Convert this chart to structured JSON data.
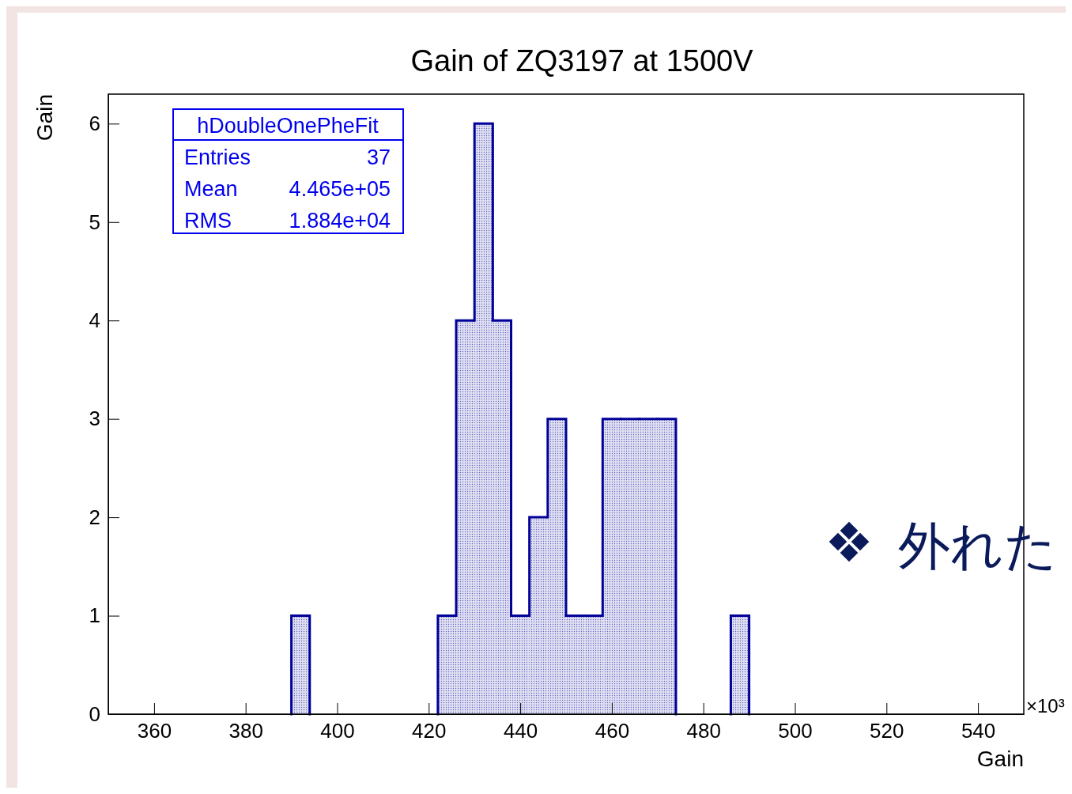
{
  "chart_data": {
    "type": "histogram",
    "title": "Gain of ZQ3197 at 1500V",
    "xlabel": "Gain",
    "ylabel": "Gain",
    "bins": [
      350,
      354,
      358,
      362,
      366,
      370,
      374,
      378,
      382,
      386,
      390,
      394,
      398,
      402,
      406,
      410,
      414,
      418,
      422,
      426,
      430,
      434,
      438,
      442,
      446,
      450,
      454,
      458,
      462,
      466,
      470,
      474,
      478,
      482,
      486,
      490,
      494,
      498,
      502,
      506,
      510,
      514,
      518,
      522,
      526,
      530,
      534,
      538,
      542,
      546,
      550
    ],
    "values": [
      0,
      0,
      0,
      0,
      0,
      0,
      0,
      0,
      0,
      0,
      1,
      0,
      0,
      0,
      0,
      0,
      0,
      0,
      1,
      4,
      6,
      4,
      1,
      2,
      3,
      1,
      1,
      3,
      3,
      3,
      3,
      0,
      0,
      0,
      1,
      0,
      0,
      0,
      0,
      0,
      0,
      0,
      0,
      0,
      0,
      0,
      0,
      0,
      0,
      0
    ],
    "color": "#000099",
    "xlim": [
      350,
      550
    ],
    "xticks": [
      360,
      380,
      400,
      420,
      440,
      460,
      480,
      500,
      520,
      540
    ],
    "ylim": [
      0,
      6.3
    ],
    "yticks": [
      0,
      1,
      2,
      3,
      4,
      5,
      6
    ],
    "grid": false,
    "annotations": [
      "hDoubleOnePheFit",
      "Entries",
      "37",
      "Mean",
      "4.465e+05",
      "RMS",
      "1.884e+04",
      "×10³",
      "外れた"
    ]
  }
}
